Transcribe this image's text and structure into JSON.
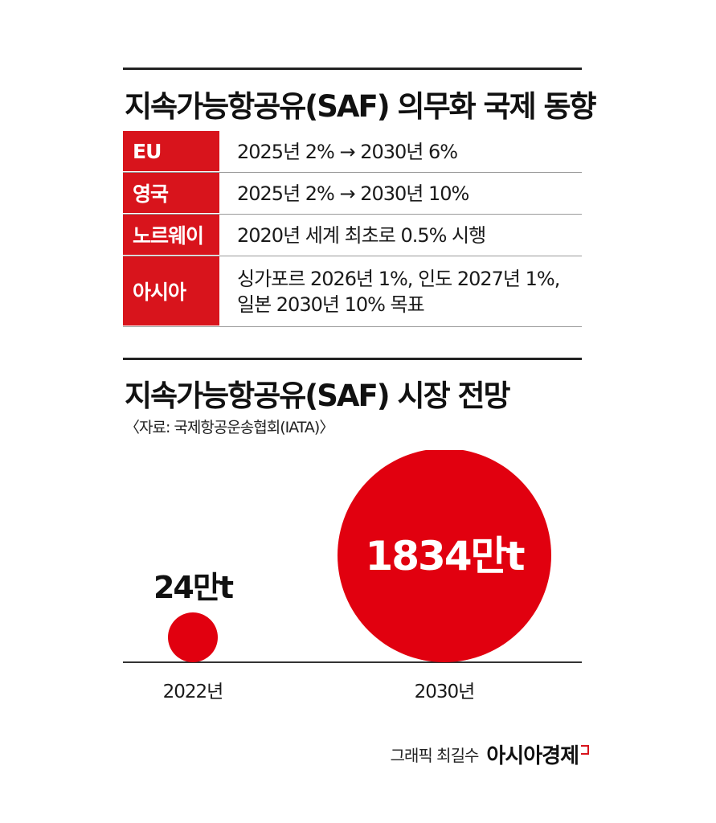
{
  "policy_section": {
    "title": "지속가능항공유(SAF) 의무화 국제 동향",
    "rows": [
      {
        "region": "EU",
        "policy": "2025년 2%  → 2030년 6%"
      },
      {
        "region": "영국",
        "policy": "2025년 2% → 2030년 10%"
      },
      {
        "region": "노르웨이",
        "policy": "2020년 세계 최초로 0.5% 시행"
      },
      {
        "region": "아시아",
        "policy": "싱가포르 2026년 1%, 인도 2027년 1%,\n일본 2030년 10% 목표"
      }
    ],
    "accent_color": "#d8141c"
  },
  "market_section": {
    "title": "지속가능항공유(SAF) 시장 전망",
    "source": "〈자료: 국제항공운송협회(IATA)〉"
  },
  "chart_data": {
    "type": "bubble",
    "categories": [
      "2022년",
      "2030년"
    ],
    "values": [
      24,
      1834
    ],
    "value_labels": [
      "24만t",
      "1834만t"
    ],
    "unit": "만t",
    "bubble_color": "#e1000f"
  },
  "credit": {
    "author": "그래픽 최길수",
    "brand": "아시아경제"
  }
}
